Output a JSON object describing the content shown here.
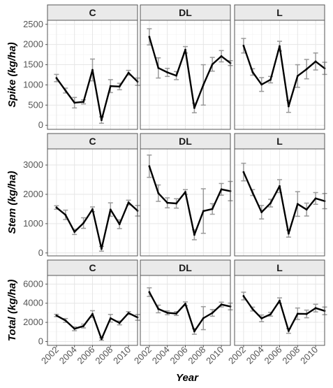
{
  "chart_data": {
    "type": "line",
    "facet_columns": [
      "C",
      "DL",
      "L"
    ],
    "x_axis": {
      "label": "Year",
      "ticks": [
        "2002",
        "2004",
        "2006",
        "2008",
        "2010"
      ],
      "range": [
        2001,
        2011
      ]
    },
    "rows": [
      {
        "ylabel": "Spike (kg/ha)",
        "ylim": [
          -100,
          2600
        ],
        "yticks": [
          "0",
          "500",
          "1000",
          "1500",
          "2000",
          "2500"
        ],
        "tick_values": [
          0,
          500,
          1000,
          1500,
          2000,
          2500
        ],
        "panels": [
          {
            "facet": "C",
            "x": [
              2002,
              2003,
              2004,
              2005,
              2006,
              2007,
              2008,
              2009,
              2010,
              2011
            ],
            "y": [
              1170,
              860,
              560,
              580,
              1370,
              130,
              970,
              960,
              1300,
              1080
            ],
            "err": [
              90,
              60,
              130,
              50,
              270,
              80,
              160,
              80,
              60,
              90
            ]
          },
          {
            "facet": "DL",
            "x": [
              2002,
              2003,
              2004,
              2005,
              2006,
              2007,
              2008,
              2009,
              2010,
              2011
            ],
            "y": [
              2190,
              1420,
              1310,
              1230,
              1870,
              430,
              1000,
              1510,
              1710,
              1540
            ],
            "err": [
              200,
              250,
              100,
              100,
              80,
              120,
              500,
              170,
              140,
              60
            ]
          },
          {
            "facet": "L",
            "x": [
              2002,
              2003,
              2004,
              2005,
              2006,
              2007,
              2008,
              2009,
              2010,
              2011
            ],
            "y": [
              1970,
              1320,
              1010,
              1130,
              1960,
              470,
              1220,
              1390,
              1580,
              1410
            ],
            "err": [
              180,
              80,
              170,
              80,
              120,
              150,
              280,
              240,
              210,
              150
            ]
          }
        ]
      },
      {
        "ylabel": "Stem (kg/ha)",
        "ylim": [
          -100,
          3550
        ],
        "yticks": [
          "0",
          "1000",
          "2000",
          "3000"
        ],
        "tick_values": [
          0,
          1000,
          2000,
          3000
        ],
        "panels": [
          {
            "facet": "C",
            "x": [
              2002,
              2003,
              2004,
              2005,
              2006,
              2007,
              2008,
              2009,
              2010,
              2011
            ],
            "y": [
              1550,
              1300,
              720,
              1020,
              1490,
              140,
              1480,
              980,
              1720,
              1440
            ],
            "err": [
              60,
              160,
              90,
              180,
              80,
              80,
              230,
              150,
              80,
              180
            ]
          },
          {
            "facet": "DL",
            "x": [
              2002,
              2003,
              2004,
              2005,
              2006,
              2007,
              2008,
              2009,
              2010,
              2011
            ],
            "y": [
              2960,
              2040,
              1710,
              1690,
              2080,
              620,
              1430,
              1500,
              2170,
              2110
            ],
            "err": [
              380,
              280,
              170,
              160,
              80,
              170,
              760,
              180,
              200,
              330
            ]
          },
          {
            "facet": "L",
            "x": [
              2002,
              2003,
              2004,
              2005,
              2006,
              2007,
              2008,
              2009,
              2010,
              2011
            ],
            "y": [
              2760,
              2060,
              1390,
              1700,
              2280,
              660,
              1670,
              1480,
              1860,
              1770
            ],
            "err": [
              300,
              100,
              230,
              130,
              220,
              120,
              420,
              220,
              200,
              260
            ]
          }
        ]
      },
      {
        "ylabel": "Total (kg/ha)",
        "ylim": [
          -400,
          6900
        ],
        "yticks": [
          "0",
          "2000",
          "4000",
          "6000"
        ],
        "tick_values": [
          0,
          2000,
          4000,
          6000
        ],
        "panels": [
          {
            "facet": "C",
            "x": [
              2002,
              2003,
              2004,
              2005,
              2006,
              2007,
              2008,
              2009,
              2010,
              2011
            ],
            "y": [
              2720,
              2200,
              1330,
              1620,
              2870,
              260,
              2430,
              1940,
              2970,
              2520
            ],
            "err": [
              120,
              200,
              200,
              200,
              350,
              120,
              400,
              200,
              150,
              300
            ]
          },
          {
            "facet": "DL",
            "x": [
              2002,
              2003,
              2004,
              2005,
              2006,
              2007,
              2008,
              2009,
              2010,
              2011
            ],
            "y": [
              5160,
              3400,
              3000,
              2920,
              3940,
              1060,
              2440,
              2990,
              3860,
              3660
            ],
            "err": [
              450,
              400,
              200,
              200,
              200,
              300,
              1200,
              350,
              250,
              350
            ]
          },
          {
            "facet": "L",
            "x": [
              2002,
              2003,
              2004,
              2005,
              2006,
              2007,
              2008,
              2009,
              2010,
              2011
            ],
            "y": [
              4750,
              3390,
              2420,
              2850,
              4260,
              1110,
              2900,
              2880,
              3490,
              3200
            ],
            "err": [
              400,
              200,
              350,
              200,
              300,
              250,
              600,
              400,
              400,
              400
            ]
          }
        ]
      }
    ],
    "colors": {
      "line": "#000000",
      "error_bar": "#9a9a9a",
      "strip_fill": "#eaeaea",
      "strip_border": "#555555",
      "grid_major": "#e6e6e6",
      "grid_minor": "#f3f3f3",
      "panel_border": "#555555",
      "tick_label": "#555555",
      "axis_title": "#000000"
    },
    "grid": true
  }
}
